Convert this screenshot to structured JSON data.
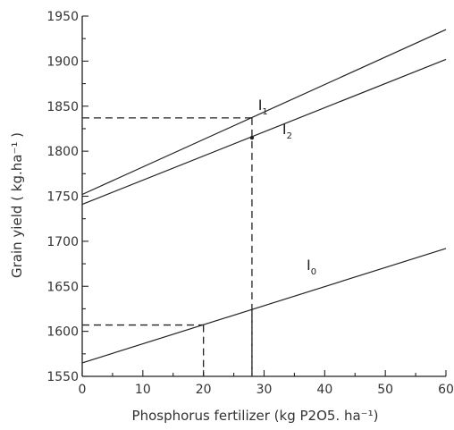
{
  "chart_data": {
    "type": "line",
    "title": "",
    "xlabel": "Phosphorus fertilizer (kg P2O5. ha⁻¹)",
    "ylabel": "Grain yield ( kg.ha⁻¹ )",
    "xlim": [
      0,
      60
    ],
    "ylim": [
      1550,
      1950
    ],
    "x_ticks": [
      0,
      10,
      20,
      30,
      40,
      50,
      60
    ],
    "y_ticks": [
      1550,
      1600,
      1650,
      1700,
      1750,
      1800,
      1850,
      1900,
      1950
    ],
    "x_tick_labels": [
      "0",
      "10",
      "20",
      "30",
      "40",
      "50",
      "60"
    ],
    "y_tick_labels": [
      "1550",
      "1600",
      "1650",
      "1700",
      "1750",
      "1800",
      "1850",
      "1900",
      "1950"
    ],
    "grid": false,
    "series": [
      {
        "name": "I1",
        "label_main": "I",
        "label_sub": "1",
        "x": [
          0,
          60
        ],
        "y": [
          1752,
          1935
        ]
      },
      {
        "name": "I2",
        "label_main": "I",
        "label_sub": "2",
        "x": [
          0,
          60
        ],
        "y": [
          1741,
          1902
        ]
      },
      {
        "name": "I0",
        "label_main": "I",
        "label_sub": "0",
        "x": [
          0,
          60
        ],
        "y": [
          1565,
          1692
        ]
      }
    ],
    "reference_lines": [
      {
        "x": 28,
        "y": 1837
      },
      {
        "x": 20,
        "y": 1607
      },
      {
        "x": 28,
        "y": 1625
      }
    ],
    "labels": {
      "I1": {
        "x": 29,
        "y": 1846
      },
      "I2": {
        "x": 33,
        "y": 1819
      },
      "I0": {
        "x": 37,
        "y": 1668
      }
    },
    "markers": [
      {
        "x": 28,
        "y": 1815
      }
    ]
  }
}
